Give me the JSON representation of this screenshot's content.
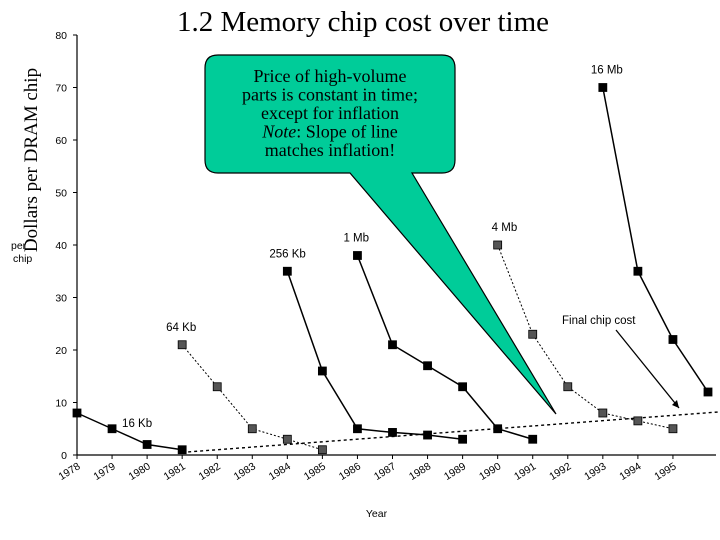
{
  "slide": {
    "title": "1.2 Memory chip cost over time",
    "vertical_label": "Dollars per DRAM chip",
    "callout_lines": [
      {
        "normal": "Price of high-volume",
        "italic": ""
      },
      {
        "normal": "parts is constant in time;",
        "italic": ""
      },
      {
        "normal": "except for inflation",
        "italic": ""
      },
      {
        "normal": ": Slope of line",
        "italic": "Note"
      },
      {
        "normal": "matches inflation!",
        "italic": ""
      }
    ]
  },
  "chart_data": {
    "type": "line",
    "xlabel": "Year",
    "ylabel_fragments": [
      "per",
      "chip"
    ],
    "xlim": [
      1978,
      1996
    ],
    "ylim": [
      0,
      80
    ],
    "x_ticks": [
      1978,
      1979,
      1980,
      1981,
      1982,
      1983,
      1984,
      1985,
      1986,
      1987,
      1988,
      1989,
      1990,
      1991,
      1992,
      1993,
      1994,
      1995
    ],
    "y_ticks": [
      0,
      10,
      20,
      30,
      40,
      50,
      60,
      70,
      80
    ],
    "grid": false,
    "series": [
      {
        "name": "16 Kb",
        "style": "solid",
        "points": [
          [
            1978,
            8
          ],
          [
            1979,
            5
          ],
          [
            1980,
            2
          ],
          [
            1981,
            1
          ]
        ]
      },
      {
        "name": "64 Kb",
        "style": "dotted",
        "points": [
          [
            1981,
            21
          ],
          [
            1982,
            13
          ],
          [
            1983,
            5
          ],
          [
            1984,
            3
          ],
          [
            1985,
            1
          ]
        ]
      },
      {
        "name": "256 Kb",
        "style": "solid",
        "points": [
          [
            1984,
            35
          ],
          [
            1985,
            16
          ],
          [
            1986,
            5
          ],
          [
            1987,
            4.3
          ],
          [
            1988,
            3.8
          ],
          [
            1989,
            3
          ]
        ]
      },
      {
        "name": "1 Mb",
        "style": "solid",
        "points": [
          [
            1986,
            38
          ],
          [
            1987,
            21
          ],
          [
            1988,
            17
          ],
          [
            1989,
            13
          ],
          [
            1990,
            5
          ],
          [
            1991,
            3
          ]
        ]
      },
      {
        "name": "4 Mb",
        "style": "dotted",
        "points": [
          [
            1990,
            40
          ],
          [
            1991,
            23
          ],
          [
            1992,
            13
          ],
          [
            1993,
            8
          ],
          [
            1994,
            6.5
          ],
          [
            1995,
            5
          ]
        ]
      },
      {
        "name": "16 Mb",
        "style": "solid",
        "points": [
          [
            1993,
            70
          ],
          [
            1994,
            35
          ],
          [
            1995,
            22
          ],
          [
            1996,
            12
          ]
        ]
      }
    ],
    "trend_line": {
      "name": "Final chip cost",
      "style": "dotted",
      "points": [
        [
          1981,
          0.5
        ],
        [
          1996.5,
          8.3
        ]
      ]
    }
  }
}
